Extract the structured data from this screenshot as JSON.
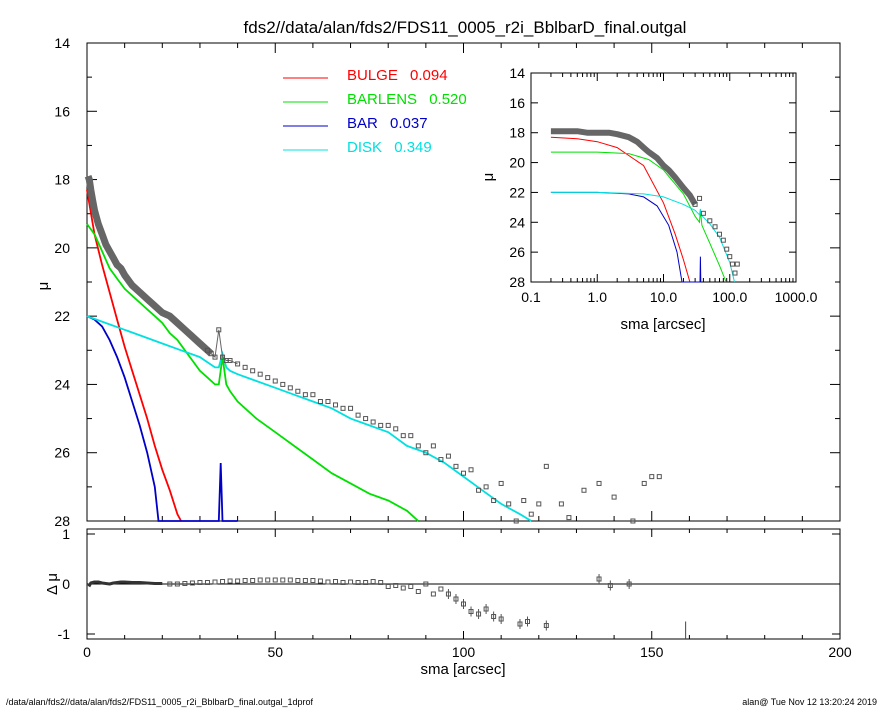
{
  "title": "fds2//data/alan/fds2/FDS11_0005_r2i_BblbarD_final.outgal",
  "footer_left": "/data/alan/fds2//data/alan/fds2/FDS11_0005_r2i_BblbarD_final.outgal_1dprof",
  "footer_right": "alan@  Tue Nov 12 13:20:24 2019",
  "colors": {
    "bulge": "#ff0000",
    "barlens": "#00e000",
    "bar": "#0000c8",
    "disk": "#00e0e0",
    "data": "#555555"
  },
  "legend": [
    {
      "key": "bulge",
      "name": "BULGE",
      "value": "0.094"
    },
    {
      "key": "barlens",
      "name": "BARLENS",
      "value": "0.520"
    },
    {
      "key": "bar",
      "name": "BAR",
      "value": "0.037"
    },
    {
      "key": "disk",
      "name": "DISK",
      "value": "0.349"
    }
  ],
  "chart_data": [
    {
      "panel": "main",
      "type": "line",
      "title": "fds2//data/alan/fds2/FDS11_0005_r2i_BblbarD_final.outgal",
      "xlabel": "",
      "ylabel": "μ",
      "xlim": [
        0,
        200
      ],
      "ylim": [
        28,
        14
      ],
      "y_inverted": true,
      "yticks": [
        14,
        16,
        18,
        20,
        22,
        24,
        26,
        28
      ],
      "series": [
        {
          "name": "BULGE",
          "key": "bulge",
          "x": [
            0,
            2,
            4,
            6,
            8,
            10,
            12,
            14,
            16,
            18,
            20,
            22,
            24,
            25
          ],
          "y": [
            18.3,
            19.6,
            20.5,
            21.3,
            22.1,
            22.9,
            23.6,
            24.3,
            25.0,
            25.8,
            26.5,
            27.1,
            27.8,
            28.0
          ]
        },
        {
          "name": "BARLENS",
          "key": "barlens",
          "x": [
            0,
            2,
            4,
            6,
            8,
            10,
            12,
            14,
            16,
            18,
            20,
            22,
            24,
            26,
            28,
            30,
            32,
            34,
            35,
            36,
            37,
            38,
            40,
            45,
            50,
            55,
            60,
            65,
            70,
            75,
            80,
            85,
            88
          ],
          "y": [
            19.3,
            19.6,
            20.1,
            20.6,
            20.9,
            21.2,
            21.4,
            21.6,
            21.8,
            22.0,
            22.2,
            22.5,
            22.7,
            23.0,
            23.3,
            23.6,
            23.8,
            24.0,
            24.0,
            23.2,
            24.0,
            24.2,
            24.5,
            25.0,
            25.4,
            25.8,
            26.2,
            26.6,
            26.9,
            27.2,
            27.4,
            27.7,
            28.0
          ]
        },
        {
          "name": "BAR",
          "key": "bar",
          "x": [
            0,
            2,
            4,
            6,
            8,
            10,
            12,
            14,
            16,
            18,
            19,
            20,
            30,
            33,
            35,
            35.5,
            36,
            36.5,
            37,
            40
          ],
          "y": [
            22.0,
            22.1,
            22.3,
            22.7,
            23.2,
            23.8,
            24.5,
            25.2,
            26.0,
            27.0,
            28.0,
            28.0,
            28.0,
            28.0,
            28.0,
            26.3,
            28.0,
            28.0,
            28.0,
            28.0
          ]
        },
        {
          "name": "DISK",
          "key": "disk",
          "x": [
            0,
            5,
            10,
            15,
            20,
            25,
            30,
            34,
            35,
            36,
            37,
            38,
            40,
            45,
            50,
            55,
            60,
            65,
            70,
            75,
            80,
            85,
            90,
            95,
            100,
            105,
            110,
            115,
            118
          ],
          "y": [
            22.0,
            22.2,
            22.4,
            22.6,
            22.8,
            23.0,
            23.2,
            23.5,
            23.5,
            23.1,
            23.5,
            23.6,
            23.7,
            23.9,
            24.1,
            24.3,
            24.5,
            24.7,
            25.0,
            25.2,
            25.4,
            25.8,
            26.0,
            26.3,
            26.7,
            27.1,
            27.5,
            27.8,
            28.0
          ]
        }
      ],
      "data_points": {
        "x": [
          0.3,
          0.6,
          1.0,
          1.5,
          2,
          3,
          4,
          5,
          6,
          7,
          8,
          9,
          10,
          12,
          14,
          16,
          18,
          20,
          22,
          24,
          26,
          28,
          30,
          32,
          33,
          34,
          35,
          36,
          37,
          38,
          40,
          42,
          44,
          46,
          48,
          50,
          52,
          54,
          56,
          58,
          60,
          62,
          64,
          66,
          68,
          70,
          72,
          74,
          76,
          78,
          80,
          82,
          84,
          86,
          88,
          90,
          92,
          94,
          96,
          98,
          100,
          102,
          104,
          106,
          108,
          110,
          112,
          114,
          116,
          118,
          120,
          122,
          126,
          128,
          132,
          136,
          140,
          145,
          148,
          150,
          152
        ],
        "y": [
          17.9,
          18.0,
          18.3,
          18.6,
          18.9,
          19.3,
          19.6,
          19.9,
          20.1,
          20.3,
          20.5,
          20.6,
          20.8,
          21.1,
          21.3,
          21.5,
          21.7,
          21.9,
          22.0,
          22.2,
          22.4,
          22.6,
          22.8,
          23.0,
          23.1,
          23.2,
          22.4,
          23.2,
          23.3,
          23.3,
          23.4,
          23.5,
          23.6,
          23.7,
          23.8,
          23.9,
          24.0,
          24.1,
          24.2,
          24.3,
          24.3,
          24.5,
          24.5,
          24.6,
          24.7,
          24.7,
          24.9,
          25.0,
          25.1,
          25.2,
          25.2,
          25.3,
          25.5,
          25.5,
          25.8,
          26.0,
          25.8,
          26.2,
          26.1,
          26.4,
          26.6,
          26.5,
          27.1,
          27.0,
          27.4,
          26.9,
          27.5,
          28.0,
          27.4,
          27.8,
          27.5,
          26.4,
          27.5,
          27.9,
          27.1,
          26.9,
          27.3,
          28.0,
          26.9,
          26.7,
          26.7
        ]
      }
    },
    {
      "panel": "residual",
      "type": "scatter",
      "xlabel": "sma [arcsec]",
      "ylabel": "Δ μ",
      "xlim": [
        0,
        200
      ],
      "ylim": [
        -1.1,
        1.1
      ],
      "xticks": [
        0,
        50,
        100,
        150,
        200
      ],
      "yticks": [
        -1,
        0,
        1
      ],
      "x": [
        0.5,
        1,
        2,
        3,
        4,
        5,
        6,
        7,
        8,
        9,
        10,
        12,
        14,
        16,
        18,
        20,
        22,
        24,
        26,
        28,
        30,
        32,
        34,
        36,
        38,
        40,
        42,
        44,
        46,
        48,
        50,
        52,
        54,
        56,
        58,
        60,
        62,
        64,
        66,
        68,
        70,
        72,
        74,
        76,
        78,
        80,
        82,
        84,
        86,
        88,
        90,
        92,
        94,
        96,
        98,
        100,
        102,
        104,
        106,
        108,
        110,
        115,
        117,
        122,
        136,
        139,
        144
      ],
      "y": [
        -0.05,
        0.02,
        0.04,
        0.04,
        0.02,
        0.01,
        0.0,
        0.02,
        0.03,
        0.04,
        0.04,
        0.03,
        0.03,
        0.02,
        0.01,
        0.01,
        0.0,
        0.0,
        0.01,
        0.02,
        0.03,
        0.03,
        0.04,
        0.05,
        0.06,
        0.06,
        0.07,
        0.07,
        0.08,
        0.08,
        0.08,
        0.08,
        0.08,
        0.07,
        0.07,
        0.07,
        0.06,
        0.04,
        0.05,
        0.03,
        0.04,
        0.03,
        0.03,
        0.05,
        0.03,
        -0.05,
        -0.03,
        -0.08,
        -0.05,
        -0.15,
        0.0,
        -0.2,
        -0.1,
        -0.2,
        -0.3,
        -0.4,
        -0.55,
        -0.6,
        -0.5,
        -0.65,
        -0.7,
        -0.8,
        -0.75,
        -0.83,
        0.1,
        -0.03,
        0.0
      ],
      "vline": {
        "x": 159,
        "y0": -1.1,
        "y1": -0.75
      }
    },
    {
      "panel": "inset",
      "type": "line",
      "xlabel": "sma [arcsec]",
      "ylabel": "μ",
      "xscale": "log",
      "xlim": [
        0.1,
        1000
      ],
      "ylim": [
        28,
        14
      ],
      "xticks": [
        0.1,
        1,
        10,
        100,
        1000
      ],
      "xtick_labels": [
        "0.1",
        "1.0",
        "10.0",
        "100.0",
        "1000.0"
      ],
      "yticks": [
        14,
        16,
        18,
        20,
        22,
        24,
        26,
        28
      ],
      "series": [
        {
          "key": "bulge",
          "x": [
            0.2,
            0.5,
            1,
            2,
            5,
            10,
            15,
            20,
            25
          ],
          "y": [
            18.3,
            18.4,
            18.6,
            19.0,
            20.2,
            22.7,
            24.8,
            26.5,
            28.0
          ]
        },
        {
          "key": "barlens",
          "x": [
            0.2,
            1,
            3,
            6,
            10,
            20,
            30,
            35,
            36,
            38,
            50,
            70,
            88
          ],
          "y": [
            19.3,
            19.3,
            19.4,
            19.8,
            20.5,
            22.1,
            23.6,
            24.0,
            23.2,
            24.2,
            25.4,
            26.9,
            28.0
          ]
        },
        {
          "key": "bar",
          "x": [
            0.2,
            1,
            3,
            5,
            8,
            12,
            16,
            19,
            35.5,
            36,
            36.5
          ],
          "y": [
            22.0,
            22.0,
            22.1,
            22.3,
            22.9,
            24.2,
            26.0,
            28.0,
            28.0,
            26.3,
            28.0
          ]
        },
        {
          "key": "disk",
          "x": [
            0.2,
            1,
            5,
            10,
            20,
            30,
            35,
            36,
            37,
            50,
            70,
            100,
            118
          ],
          "y": [
            22.0,
            22.0,
            22.1,
            22.3,
            22.8,
            23.2,
            23.5,
            23.1,
            23.5,
            24.1,
            25.0,
            26.7,
            28.0
          ]
        }
      ],
      "data_points": {
        "x": [
          0.2,
          0.3,
          0.4,
          0.5,
          0.7,
          1,
          1.5,
          2,
          3,
          4,
          5,
          6,
          8,
          10,
          12,
          15,
          20,
          25,
          30,
          35,
          40,
          50,
          60,
          70,
          80,
          90,
          100,
          110,
          120,
          130
        ],
        "y": [
          17.9,
          17.9,
          17.9,
          17.9,
          18.0,
          18.0,
          18.0,
          18.1,
          18.3,
          18.6,
          19.0,
          19.3,
          19.7,
          20.2,
          20.5,
          21.0,
          21.7,
          22.2,
          22.8,
          22.4,
          23.4,
          23.9,
          24.3,
          24.8,
          25.2,
          25.8,
          26.3,
          26.8,
          27.4,
          26.8
        ]
      }
    }
  ]
}
